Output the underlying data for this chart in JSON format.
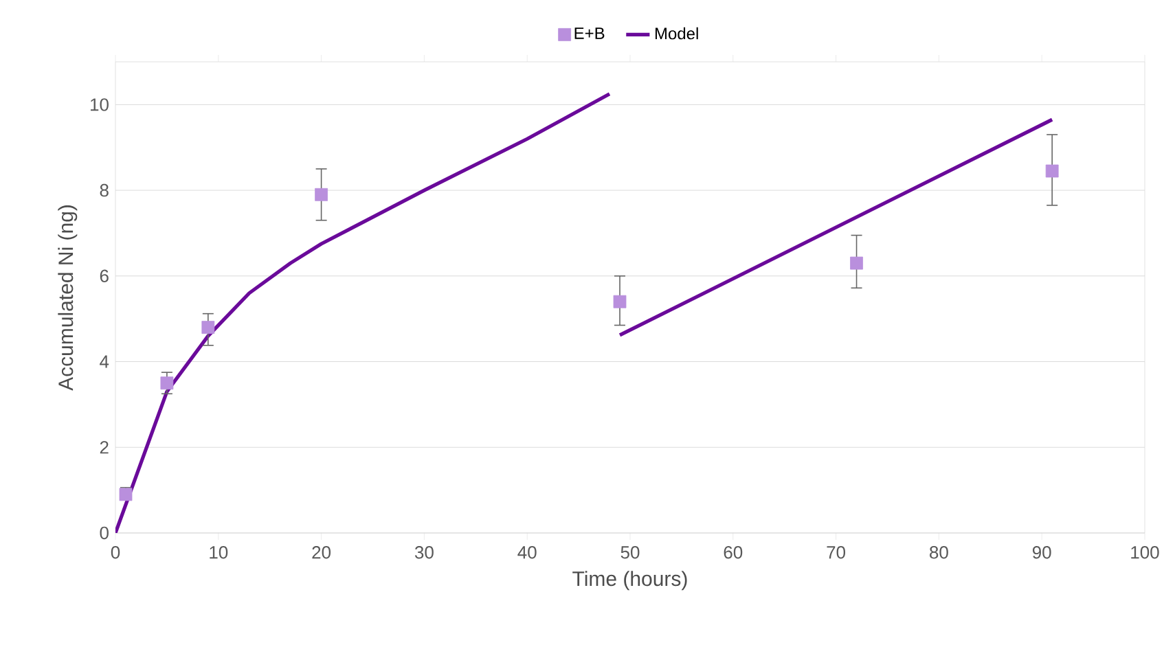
{
  "chart_data": {
    "type": "scatter",
    "xlabel": "Time (hours)",
    "ylabel": "Accumulated Ni (ng)",
    "xlim": [
      0,
      100
    ],
    "xticks": [
      0,
      10,
      20,
      30,
      40,
      50,
      60,
      70,
      80,
      90,
      100
    ],
    "ylim": [
      0,
      11
    ],
    "yticks": [
      0,
      2,
      4,
      6,
      8,
      10
    ],
    "grid": "y",
    "legend": "top",
    "series": [
      {
        "name": "E+B",
        "marker": "square",
        "color": "#b98fdd",
        "x": [
          1,
          5,
          9,
          20,
          49,
          72,
          91
        ],
        "values": [
          0.9,
          3.5,
          4.8,
          7.9,
          5.4,
          6.3,
          8.45
        ],
        "errors": [
          [
            0.81,
            1.06
          ],
          [
            3.25,
            3.75
          ],
          [
            4.38,
            5.12
          ],
          [
            7.3,
            8.5
          ],
          [
            4.85,
            6.0
          ],
          [
            5.72,
            6.95
          ],
          [
            7.65,
            9.3
          ]
        ]
      },
      {
        "name": "Model",
        "type": "line",
        "marker": "none",
        "line_style": "solid",
        "color": "#6a0a9a",
        "x": [
          0,
          5,
          9,
          13,
          17,
          20,
          24,
          30,
          40,
          48,
          48.5,
          49,
          91
        ],
        "values": [
          0,
          3.3,
          4.6,
          5.6,
          6.3,
          6.75,
          7.25,
          8.0,
          9.2,
          10.25,
          null,
          4.62,
          9.65
        ]
      }
    ]
  }
}
